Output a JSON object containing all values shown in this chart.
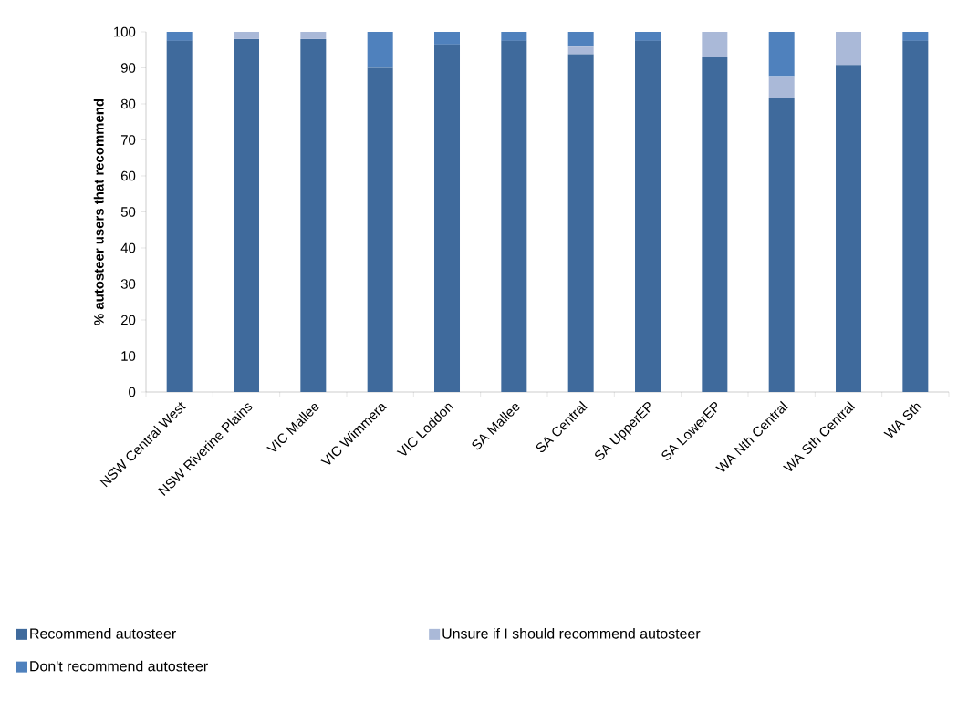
{
  "chart_data": {
    "type": "bar",
    "stacked": true,
    "ylabel": "% autosteer users that recommend",
    "categories": [
      "NSW Central West",
      "NSW Riverine Plains",
      "VIC Mallee",
      "VIC Wimmera",
      "VIC Loddon",
      "SA Mallee",
      "SA Central",
      "SA UpperEP",
      "SA LowerEP",
      "WA Nth Central",
      "WA Sth Central",
      "WA Sth"
    ],
    "series": [
      {
        "name": "Recommend autosteer",
        "color": "#3f6a9c",
        "values": [
          97.5,
          98,
          98,
          90,
          96.5,
          97.5,
          93.8,
          97.5,
          92.9,
          81.5,
          90.8,
          97.5
        ]
      },
      {
        "name": "Unsure if I should recommend autosteer",
        "color": "#aab9d8",
        "values": [
          0,
          2,
          2,
          0,
          0,
          0,
          2.1,
          0,
          7.1,
          6.2,
          9.2,
          0
        ]
      },
      {
        "name": "Don't recommend autosteer",
        "color": "#4f81bd",
        "values": [
          2.5,
          0,
          0,
          10,
          3.5,
          2.5,
          4.1,
          2.5,
          0,
          12.3,
          0,
          2.5
        ]
      }
    ],
    "ylim": [
      0,
      100
    ],
    "yticks": [
      0,
      10,
      20,
      30,
      40,
      50,
      60,
      70,
      80,
      90,
      100
    ],
    "grid": false,
    "legend": "bottom"
  }
}
